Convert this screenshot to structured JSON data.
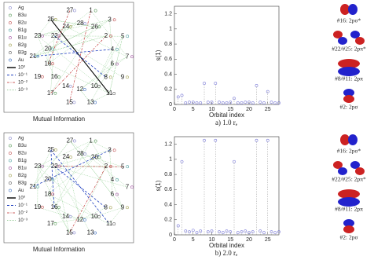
{
  "chart_data": [
    {
      "type": "stem",
      "xlabel": "Orbital index",
      "ylabel": "s(1)",
      "color": "#7a7ad6",
      "x": [
        1,
        2,
        3,
        4,
        5,
        6,
        7,
        8,
        9,
        10,
        11,
        12,
        13,
        14,
        15,
        16,
        17,
        18,
        19,
        20,
        21,
        22,
        23,
        24,
        25,
        26,
        27,
        28
      ],
      "values": [
        0.1,
        0.12,
        0.02,
        0.03,
        0.03,
        0.02,
        0.02,
        0.28,
        0.03,
        0.03,
        0.28,
        0.03,
        0.02,
        0.02,
        0.03,
        0.08,
        0.02,
        0.02,
        0.03,
        0.03,
        0.02,
        0.25,
        0.03,
        0.02,
        0.17,
        0.03,
        0.02,
        0.02
      ],
      "xlim": [
        0,
        28
      ],
      "ylim": [
        0,
        1.3
      ],
      "xticks": [
        0,
        5,
        10,
        15,
        20,
        25
      ],
      "yticks": [
        0,
        0.2,
        0.4,
        0.6,
        0.8,
        1,
        1.2
      ]
    },
    {
      "type": "stem",
      "xlabel": "Orbital index",
      "ylabel": "s(1)",
      "color": "#7a7ad6",
      "x": [
        1,
        2,
        3,
        4,
        5,
        6,
        7,
        8,
        9,
        10,
        11,
        12,
        13,
        14,
        15,
        16,
        17,
        18,
        19,
        20,
        21,
        22,
        23,
        24,
        25,
        26,
        27,
        28
      ],
      "values": [
        0.12,
        0.97,
        0.05,
        0.04,
        0.06,
        0.03,
        0.05,
        1.25,
        0.04,
        0.05,
        1.25,
        0.04,
        0.03,
        0.05,
        0.04,
        0.97,
        0.03,
        0.04,
        0.05,
        0.03,
        0.04,
        1.25,
        0.05,
        0.03,
        1.25,
        0.04,
        0.03,
        0.04
      ],
      "xlim": [
        0,
        28
      ],
      "ylim": [
        0,
        1.3
      ],
      "xticks": [
        0,
        5,
        10,
        15,
        20,
        25
      ],
      "yticks": [
        0,
        0.2,
        0.4,
        0.6,
        0.8,
        1,
        1.2
      ]
    }
  ],
  "diagrams": [
    {
      "title": "Mutual Information",
      "legend": [
        "Ag",
        "B3u",
        "B2u",
        "B1g",
        "B1u",
        "B2g",
        "B3g",
        "Au",
        "10⁰",
        "10⁻¹",
        "10⁻²",
        "10⁻³"
      ],
      "outer": [
        "27",
        "1",
        "3",
        "5",
        "7",
        "9",
        "11",
        "13",
        "15",
        "17",
        "19",
        "21",
        "23",
        "25"
      ],
      "inner": [
        "28",
        "26",
        "2",
        "4",
        "6",
        "8",
        "10",
        "12",
        "14",
        "16",
        "18",
        "20",
        "22",
        "24"
      ]
    },
    {
      "title": "Mutual Information",
      "legend": [
        "Ag",
        "B3u",
        "B2u",
        "B1g",
        "B1u",
        "B2g",
        "B3g",
        "Au",
        "10⁰",
        "10⁻¹",
        "10⁻²",
        "10⁻³"
      ],
      "outer": [
        "27",
        "1",
        "3",
        "5",
        "7",
        "9",
        "11",
        "13",
        "15",
        "17",
        "19",
        "21",
        "23",
        "25"
      ],
      "inner": [
        "28",
        "26",
        "2",
        "4",
        "6",
        "8",
        "10",
        "12",
        "14",
        "16",
        "18",
        "20",
        "22",
        "24"
      ]
    }
  ],
  "captions": [
    "a) 1.0 rₑ",
    "b) 2.0 rₑ"
  ],
  "orbitals": [
    [
      "#16: 2pσ*",
      "#22/#25: 2pπ*",
      "#8/#11: 2pπ",
      "#2: 2pσ"
    ],
    [
      "#16: 2pσ*",
      "#22/#25: 2pπ*",
      "#8/#11: 2pπ",
      "#2: 2pσ"
    ]
  ]
}
